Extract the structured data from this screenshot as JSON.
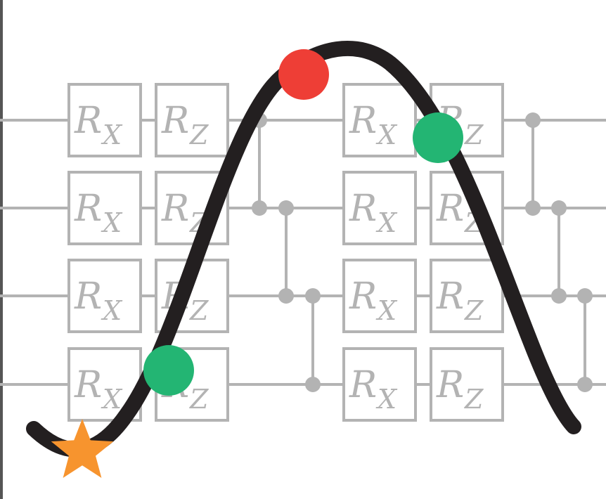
{
  "circuit": {
    "gate_labels": {
      "rx": {
        "main": "R",
        "sub": "X"
      },
      "rz": {
        "main": "R",
        "sub": "Z"
      }
    },
    "colors": {
      "wire": "#b3b3b3",
      "gate_stroke": "#b3b3b3",
      "gate_text": "#b3b3b3",
      "control": "#b3b3b3"
    }
  },
  "landscape": {
    "curve_color": "#231f20",
    "markers": [
      {
        "name": "start-star-marker",
        "shape": "star",
        "color": "#f7942e"
      },
      {
        "name": "red-dot-marker",
        "shape": "circle",
        "color": "#ee3e36"
      },
      {
        "name": "green-dot-marker-upper",
        "shape": "circle",
        "color": "#23b573"
      },
      {
        "name": "green-dot-marker-lower",
        "shape": "circle",
        "color": "#23b573"
      }
    ]
  }
}
